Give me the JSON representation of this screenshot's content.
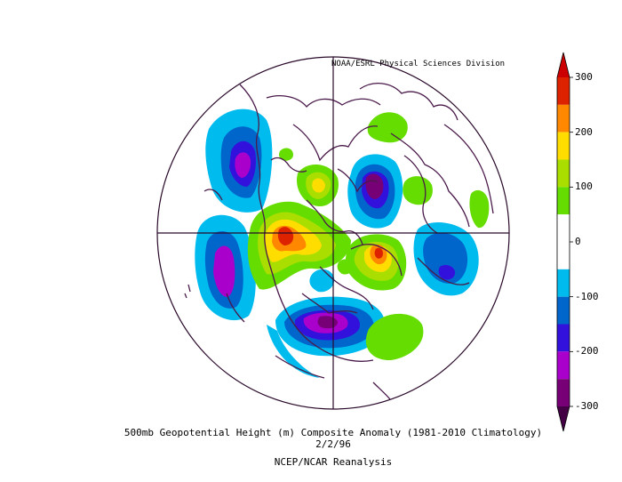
{
  "map": {
    "credit": "NOAA/ESRL Physical Sciences Division",
    "caption": "500mb Geopotential Height (m) Composite Anomaly (1981-2010 Climatology)",
    "date": "2/2/96",
    "source": "NCEP/NCAR Reanalysis",
    "projection": "north-polar-stereographic",
    "land_color": "#4a1a4a"
  },
  "colorbar": {
    "units": "m",
    "tick_labels": [
      "300",
      "200",
      "100",
      "0",
      "-100",
      "-200",
      "-300"
    ],
    "bins": [
      {
        "from": 250,
        "to": 300,
        "color": "#dd2200"
      },
      {
        "from": 200,
        "to": 250,
        "color": "#ff8800"
      },
      {
        "from": 150,
        "to": 200,
        "color": "#ffdd00"
      },
      {
        "from": 100,
        "to": 150,
        "color": "#aade00"
      },
      {
        "from": 50,
        "to": 100,
        "color": "#66dd00"
      },
      {
        "from": -50,
        "to": 50,
        "color": "#ffffff"
      },
      {
        "from": -100,
        "to": -50,
        "color": "#00bbee"
      },
      {
        "from": -150,
        "to": -100,
        "color": "#0066cc"
      },
      {
        "from": -200,
        "to": -150,
        "color": "#3311dd"
      },
      {
        "from": -250,
        "to": -200,
        "color": "#aa00cc"
      },
      {
        "from": -300,
        "to": -250,
        "color": "#770077"
      }
    ],
    "over_color": "#cc0000",
    "under_color": "#440044"
  }
}
